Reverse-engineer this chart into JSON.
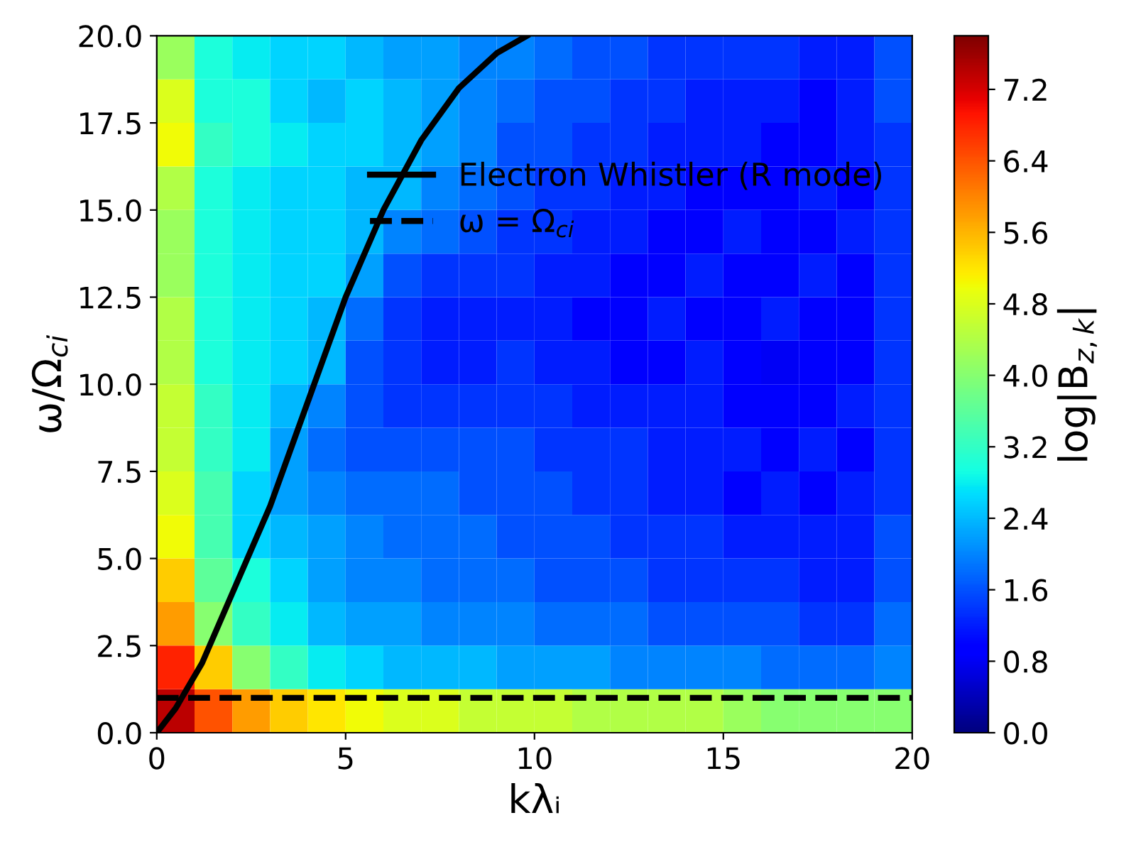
{
  "chart_data": {
    "type": "heatmap",
    "xlabel": "kλᵢ",
    "ylabel": "ω/Ω$_{ci}$",
    "clabel": "log|B$_{z,k}$|",
    "xlim": [
      0,
      20
    ],
    "ylim": [
      0,
      20
    ],
    "xticks": [
      0,
      5,
      10,
      15,
      20
    ],
    "yticks": [
      {
        "value": 0,
        "label": "0.0"
      },
      2.5,
      {
        "value": 5,
        "label": "5.0"
      },
      7.5,
      {
        "value": 10,
        "label": "10.0"
      },
      12.5,
      {
        "value": 15,
        "label": "15.0"
      },
      17.5,
      {
        "value": 20,
        "label": "20.0"
      }
    ],
    "clim": [
      0,
      7.8
    ],
    "cticks": [
      {
        "value": 0,
        "label": "0.0"
      },
      0.8,
      1.6,
      2.4,
      3.2,
      {
        "value": 4,
        "label": "4.0"
      },
      4.8,
      5.6,
      6.4,
      7.2
    ],
    "cells": [
      [
        4.2,
        3.0,
        2.8,
        2.6,
        2.6,
        2.4,
        2.2,
        2.2,
        2.0,
        2.0,
        1.8,
        1.6,
        1.6,
        1.4,
        1.4,
        1.4,
        1.4,
        1.2,
        1.2,
        1.6
      ],
      [
        4.8,
        3.0,
        3.0,
        2.6,
        2.4,
        2.6,
        2.4,
        2.2,
        2.0,
        1.8,
        1.6,
        1.6,
        1.4,
        1.4,
        1.2,
        1.2,
        1.2,
        1.0,
        1.2,
        1.6
      ],
      [
        5.0,
        3.2,
        3.0,
        2.8,
        2.6,
        2.6,
        2.4,
        2.2,
        2.0,
        1.6,
        1.6,
        1.4,
        1.4,
        1.2,
        1.2,
        1.2,
        1.0,
        1.0,
        1.2,
        1.4
      ],
      [
        4.4,
        3.0,
        2.8,
        2.6,
        2.6,
        2.4,
        2.4,
        2.0,
        1.8,
        1.6,
        1.4,
        1.4,
        1.2,
        1.2,
        1.0,
        1.0,
        1.0,
        1.2,
        1.0,
        1.4
      ],
      [
        4.2,
        3.0,
        2.8,
        2.6,
        2.6,
        2.4,
        2.0,
        1.8,
        1.6,
        1.4,
        1.4,
        1.2,
        1.2,
        1.0,
        1.0,
        1.2,
        1.0,
        1.0,
        1.2,
        1.4
      ],
      [
        4.2,
        3.0,
        2.8,
        2.6,
        2.6,
        2.2,
        1.6,
        1.4,
        1.4,
        1.4,
        1.2,
        1.2,
        1.0,
        1.0,
        1.2,
        1.0,
        1.0,
        1.2,
        1.0,
        1.4
      ],
      [
        4.4,
        3.0,
        2.8,
        2.6,
        2.4,
        1.8,
        1.4,
        1.2,
        1.2,
        1.2,
        1.2,
        1.0,
        1.0,
        1.2,
        1.0,
        1.0,
        1.2,
        1.0,
        1.0,
        1.4
      ],
      [
        4.4,
        3.0,
        2.8,
        2.6,
        2.4,
        1.6,
        1.4,
        1.2,
        1.2,
        1.4,
        1.2,
        1.2,
        1.0,
        1.0,
        1.2,
        1.0,
        0.8,
        1.0,
        1.0,
        1.4
      ],
      [
        4.6,
        3.2,
        2.8,
        2.4,
        2.0,
        1.6,
        1.4,
        1.4,
        1.4,
        1.4,
        1.4,
        1.2,
        1.2,
        1.2,
        1.2,
        1.0,
        1.0,
        1.0,
        1.2,
        1.4
      ],
      [
        4.6,
        3.2,
        2.8,
        2.2,
        1.8,
        1.6,
        1.6,
        1.6,
        1.6,
        1.6,
        1.4,
        1.4,
        1.4,
        1.2,
        1.2,
        1.2,
        1.0,
        1.2,
        1.0,
        1.4
      ],
      [
        4.8,
        3.4,
        2.6,
        2.2,
        2.0,
        1.8,
        1.8,
        1.8,
        1.6,
        1.6,
        1.6,
        1.4,
        1.4,
        1.2,
        1.2,
        1.0,
        1.2,
        1.0,
        1.2,
        1.4
      ],
      [
        5.0,
        3.4,
        2.6,
        2.4,
        2.2,
        2.0,
        1.8,
        1.8,
        1.8,
        1.6,
        1.6,
        1.6,
        1.4,
        1.4,
        1.4,
        1.2,
        1.2,
        1.2,
        1.2,
        1.6
      ],
      [
        5.4,
        3.6,
        3.0,
        2.6,
        2.2,
        2.0,
        2.0,
        1.8,
        1.8,
        1.8,
        1.6,
        1.6,
        1.6,
        1.4,
        1.4,
        1.4,
        1.4,
        1.2,
        1.2,
        1.6
      ],
      [
        5.8,
        4.0,
        3.2,
        2.8,
        2.4,
        2.2,
        2.2,
        2.0,
        2.0,
        2.0,
        1.8,
        1.8,
        1.8,
        1.6,
        1.6,
        1.6,
        1.6,
        1.4,
        1.4,
        1.8
      ],
      [
        6.8,
        5.4,
        4.0,
        3.2,
        2.8,
        2.6,
        2.4,
        2.4,
        2.4,
        2.2,
        2.2,
        2.2,
        2.0,
        2.0,
        2.0,
        2.0,
        1.8,
        1.8,
        1.8,
        2.0
      ],
      [
        7.4,
        6.4,
        5.8,
        5.4,
        5.2,
        5.0,
        4.8,
        4.8,
        4.6,
        4.6,
        4.6,
        4.4,
        4.4,
        4.4,
        4.4,
        4.2,
        4.0,
        4.0,
        4.0,
        4.0
      ]
    ],
    "series": [
      {
        "type": "line",
        "name": "Electron Whistler (R mode)",
        "color": "#000000",
        "x": [
          0,
          0.5,
          1.2,
          2,
          3,
          4,
          5,
          6,
          7,
          8,
          9,
          9.8
        ],
        "values": [
          0,
          0.7,
          2,
          4,
          6.5,
          9.5,
          12.5,
          15,
          17,
          18.5,
          19.5,
          20
        ]
      }
    ],
    "ref_lines": [
      {
        "axis": "y",
        "value": 1,
        "label": "ω = Ω$_{ci}$",
        "color": "#000000",
        "line_style": "dashed"
      }
    ],
    "legend": "top right",
    "grid": false
  }
}
